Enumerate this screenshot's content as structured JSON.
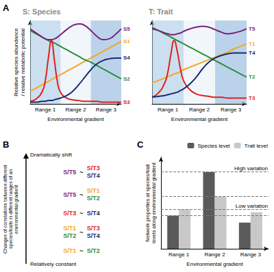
{
  "panel_labels": [
    "A",
    "B",
    "C"
  ],
  "chart_data": [
    {
      "type": "line",
      "title": "S: Species",
      "x": [
        0,
        2,
        4,
        5,
        6,
        7,
        8,
        9,
        10,
        12,
        14,
        16,
        18,
        20,
        22,
        24,
        26,
        28,
        30
      ],
      "series": [
        {
          "name": "S1",
          "color": "#f5a623",
          "values": [
            1.5,
            1.9,
            2.3,
            2.5,
            2.7,
            2.9,
            3.1,
            3.3,
            3.5,
            3.9,
            4.3,
            4.7,
            5.1,
            5.5,
            5.9,
            6.3,
            6.7,
            7.1,
            7.5
          ]
        },
        {
          "name": "S2",
          "color": "#2e8b3a",
          "values": [
            8.8,
            8.4,
            8.0,
            7.8,
            7.6,
            7.4,
            7.3,
            7.1,
            6.9,
            6.5,
            6.1,
            5.7,
            5.3,
            5.0,
            4.6,
            4.2,
            3.8,
            3.4,
            3.0
          ]
        },
        {
          "name": "S3",
          "color": "#e0201b",
          "values": [
            0.3,
            0.6,
            1.5,
            2.8,
            5.5,
            7.6,
            5.2,
            2.6,
            1.4,
            0.7,
            0.5,
            0.4,
            0.3,
            0.3,
            0.3,
            0.2,
            0.2,
            0.2,
            0.2
          ]
        },
        {
          "name": "S4",
          "color": "#1a2a6c",
          "values": [
            0.2,
            0.2,
            0.3,
            0.3,
            0.4,
            0.4,
            0.5,
            0.6,
            0.7,
            1.0,
            1.5,
            2.3,
            3.2,
            4.1,
            4.8,
            5.2,
            5.4,
            5.5,
            5.5
          ]
        },
        {
          "name": "S5",
          "color": "#7b1f7a",
          "values": [
            9.0,
            8.5,
            8.0,
            7.8,
            7.7,
            7.7,
            7.8,
            8.0,
            8.3,
            8.9,
            9.4,
            9.6,
            9.4,
            8.8,
            8.1,
            7.7,
            7.8,
            8.3,
            9.0
          ]
        }
      ],
      "xlim": [
        0,
        30
      ],
      "xticks": [
        {
          "value": 5,
          "label": "Range 1"
        },
        {
          "value": 15,
          "label": "Range 2"
        },
        {
          "value": 25,
          "label": "Range 3"
        }
      ],
      "ylim": [
        0,
        10
      ],
      "yticks": [],
      "x_label": "Environmental gradient",
      "y_label": "Relative species abundance\n/ relative metabolic potential",
      "tick_labels": "x",
      "grid": false
    },
    {
      "type": "line",
      "title": "T: Trait",
      "x": [
        0,
        2,
        4,
        5,
        6,
        7,
        8,
        9,
        10,
        12,
        14,
        16,
        18,
        20,
        22,
        24,
        26,
        28,
        30
      ],
      "series": [
        {
          "name": "T1",
          "color": "#f5a623",
          "values": [
            2.5,
            2.8,
            3.1,
            3.3,
            3.4,
            3.6,
            3.7,
            3.9,
            4.1,
            4.4,
            4.7,
            5.0,
            5.3,
            5.6,
            5.9,
            6.2,
            6.6,
            6.9,
            7.2
          ]
        },
        {
          "name": "T2",
          "color": "#2e8b3a",
          "values": [
            9.2,
            8.8,
            8.4,
            8.2,
            8.0,
            7.8,
            7.6,
            7.4,
            7.2,
            6.8,
            6.4,
            6.0,
            5.6,
            5.2,
            4.8,
            4.4,
            4.0,
            3.6,
            3.2
          ]
        },
        {
          "name": "T3",
          "color": "#e0201b",
          "values": [
            0.8,
            1.3,
            2.5,
            3.8,
            6.0,
            7.6,
            6.3,
            4.2,
            2.8,
            1.7,
            1.2,
            1.0,
            0.9,
            0.8,
            0.8,
            0.7,
            0.7,
            0.7,
            0.7
          ]
        },
        {
          "name": "T4",
          "color": "#1a2a6c",
          "values": [
            0.8,
            0.9,
            1.0,
            1.1,
            1.2,
            1.3,
            1.4,
            1.6,
            1.8,
            2.4,
            3.2,
            4.2,
            5.0,
            5.5,
            5.8,
            6.0,
            6.1,
            6.1,
            6.1
          ]
        },
        {
          "name": "T5",
          "color": "#7b1f7a",
          "values": [
            9.0,
            8.8,
            8.5,
            8.4,
            8.3,
            8.3,
            8.4,
            8.5,
            8.7,
            9.0,
            9.2,
            9.3,
            9.2,
            8.9,
            8.6,
            8.4,
            8.5,
            8.7,
            9.0
          ]
        }
      ],
      "xlim": [
        0,
        30
      ],
      "xticks": [
        {
          "value": 5,
          "label": "Range 1"
        },
        {
          "value": 15,
          "label": "Range 2"
        },
        {
          "value": 25,
          "label": "Range 3"
        }
      ],
      "ylim": [
        0,
        10
      ],
      "yticks": [],
      "x_label": "Environmental gradient",
      "tick_labels": "x",
      "grid": false
    },
    {
      "type": "bar",
      "categories": [
        "Range 1",
        "Range 2",
        "Range 3"
      ],
      "series": [
        {
          "name": "Species level",
          "color": "#5a5a5a",
          "values": [
            3.8,
            8.8,
            3.0
          ]
        },
        {
          "name": "Trait level",
          "color": "#c8c8c8",
          "values": [
            4.5,
            6.0,
            4.2
          ]
        }
      ],
      "ylim": [
        0,
        10.5
      ],
      "yticks": [],
      "x_label": "Environmental gradient",
      "y_label": "Network properties at species/trait\nlevels along environmental gradient",
      "annotations": [
        {
          "text": "High variation",
          "y": [
            6.0,
            8.8
          ]
        },
        {
          "text": "Low variation",
          "y": [
            3.8,
            4.5
          ]
        }
      ],
      "legend": "top-right",
      "tick_labels": "x",
      "grid": false
    }
  ],
  "diagram": {
    "axis_label": "Changes of correlations between different species/traits in different ranges of an environmental gradient",
    "top_label": "Dramatically shift",
    "bottom_label": "Relatively constant",
    "separator": "~",
    "rows": [
      {
        "left": [
          {
            "label": "S/T5",
            "color": "#7b1f7a"
          }
        ],
        "right": [
          {
            "label": "S/T3",
            "color": "#e0201b"
          },
          {
            "label": "S/T4",
            "color": "#1a2a6c"
          }
        ]
      },
      {
        "left": [
          {
            "label": "S/T5",
            "color": "#7b1f7a"
          }
        ],
        "right": [
          {
            "label": "S/T1",
            "color": "#f5a623"
          },
          {
            "label": "S/T2",
            "color": "#2e8b3a"
          }
        ]
      },
      {
        "left": [
          {
            "label": "S/T3",
            "color": "#e0201b"
          }
        ],
        "right": [
          {
            "label": "S/T4",
            "color": "#1a2a6c"
          }
        ]
      },
      {
        "left": [
          {
            "label": "S/T1",
            "color": "#f5a623"
          },
          {
            "label": "S/T2",
            "color": "#2e8b3a"
          }
        ],
        "right": [
          {
            "label": "S/T3",
            "color": "#e0201b"
          },
          {
            "label": "S/T4",
            "color": "#1a2a6c"
          }
        ]
      },
      {
        "left": [
          {
            "label": "S/T1",
            "color": "#f5a623"
          }
        ],
        "right": [
          {
            "label": "S/T2",
            "color": "#2e8b3a"
          }
        ]
      }
    ]
  }
}
